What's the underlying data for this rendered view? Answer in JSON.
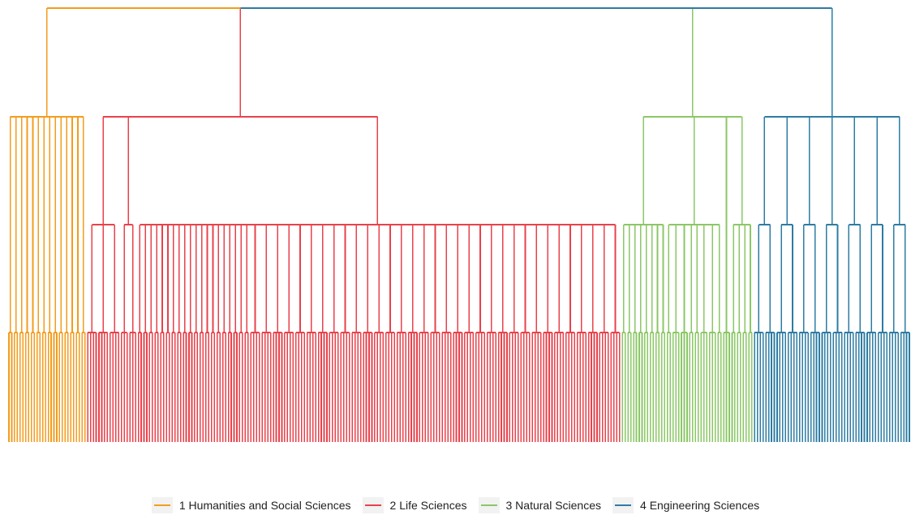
{
  "legend": {
    "position": "bottom",
    "items": [
      {
        "label": "1 Humanities and Social Sciences",
        "color": "#f39c1e"
      },
      {
        "label": "2 Life Sciences",
        "color": "#e8424b"
      },
      {
        "label": "3 Natural Sciences",
        "color": "#8bc766"
      },
      {
        "label": "4 Engineering Sciences",
        "color": "#2e7ca3"
      }
    ]
  },
  "dendrogram": {
    "levels": [
      "root",
      "area",
      "review board",
      "subject"
    ],
    "root_color": "#f39c1e",
    "areas": [
      {
        "name": "1 Humanities and Social Sciences",
        "color": "#f39c1e",
        "boards": [
          2,
          2,
          2,
          2,
          2,
          2,
          2,
          2,
          2,
          2,
          2,
          2,
          2,
          2
        ]
      },
      {
        "name": "2 Life Sciences",
        "color": "#e8424b",
        "boards": [
          [
            4,
            4,
            4
          ],
          [
            3,
            3
          ],
          [
            [
              2,
              2,
              2,
              2,
              2,
              2,
              2,
              2,
              2,
              2,
              2,
              2,
              2,
              2,
              2,
              2,
              2,
              2,
              2,
              2
            ],
            [
              4,
              4,
              4,
              4,
              4
            ],
            [
              4,
              4,
              4,
              4,
              4,
              4,
              4,
              4,
              4,
              4,
              4,
              4,
              4,
              4,
              4,
              4,
              4,
              4,
              4,
              4
            ],
            [
              4,
              4,
              4,
              4,
              4,
              4,
              4,
              4
            ]
          ]
        ]
      },
      {
        "name": "3 Natural Sciences",
        "color": "#8bc766",
        "boards": [
          [
            2,
            2,
            2,
            2,
            2,
            2,
            2,
            2
          ],
          [
            2,
            3,
            3,
            2,
            2,
            3,
            3,
            2
          ],
          [
            3
          ],
          [
            2,
            2,
            2,
            2
          ]
        ]
      },
      {
        "name": "4 Engineering Sciences",
        "color": "#2e7ca3",
        "boards": [
          [
            4,
            4
          ],
          [
            4,
            4
          ],
          [
            4,
            4
          ],
          [
            4,
            4
          ],
          [
            4,
            4
          ],
          [
            4,
            4
          ],
          [
            4,
            4
          ]
        ]
      }
    ]
  }
}
